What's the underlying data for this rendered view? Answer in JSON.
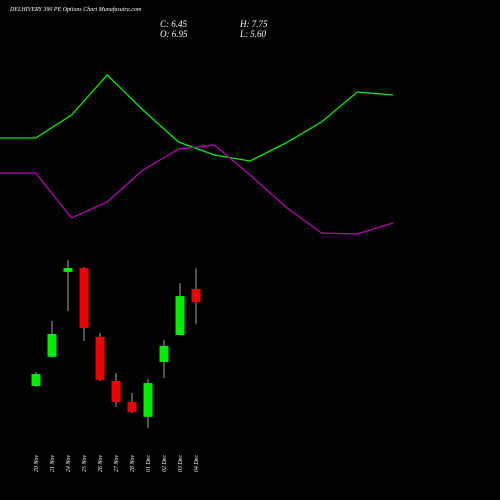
{
  "header": {
    "title": "DELHIVERY 390 PE Options Chart Munafasutra.com",
    "close": "C: 6.45",
    "open": "O: 6.95",
    "high": "H: 7.75",
    "low": "L: 5.60"
  },
  "chart_data": [
    {
      "type": "line",
      "categories": [
        null,
        null,
        null,
        null,
        null,
        null,
        null,
        null,
        null,
        null,
        null,
        null
      ],
      "ylim": [
        0,
        105
      ],
      "series": [
        {
          "color": "#00ee00",
          "values": [
            61,
            61,
            72.5,
            92.5,
            75,
            59,
            52.5,
            49.5,
            58.5,
            69,
            84,
            82.5
          ]
        },
        {
          "color": "#bb00bb",
          "values": [
            43.5,
            43.5,
            21,
            29,
            45,
            55.5,
            57.5,
            42.5,
            26.5,
            13.5,
            13,
            18.5
          ]
        }
      ]
    },
    {
      "type": "candlestick",
      "categories": [
        "20 Nov",
        "21 Nov",
        "24 Nov",
        "25 Nov",
        "26 Nov",
        "27 Nov",
        "28 Nov",
        "01 Dec",
        "02 Dec",
        "03 Dec",
        "04 Dec"
      ],
      "ylim": [
        1,
        8.5
      ],
      "up_color": "#00ee00",
      "down_color": "#ee0000",
      "open": [
        3.22,
        4.34,
        7.61,
        7.76,
        5.11,
        3.41,
        2.6,
        2.03,
        4.14,
        5.18,
        6.95
      ],
      "close": [
        3.68,
        5.22,
        7.76,
        5.45,
        3.45,
        2.6,
        2.22,
        3.33,
        4.76,
        6.68,
        6.45
      ],
      "high": [
        3.76,
        5.72,
        8.07,
        7.8,
        5.26,
        3.72,
        2.95,
        3.49,
        4.99,
        7.18,
        7.75
      ],
      "low": [
        3.18,
        4.3,
        6.11,
        4.95,
        3.41,
        2.41,
        2.18,
        1.6,
        3.53,
        5.18,
        5.6
      ]
    }
  ]
}
